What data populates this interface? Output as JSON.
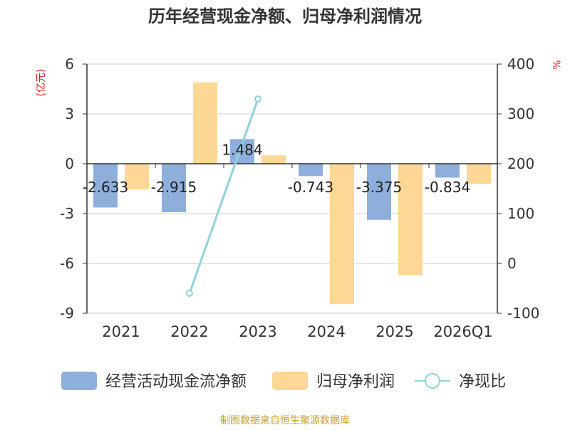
{
  "chart_data": {
    "type": "bar",
    "title": "历年经营现金净额、归母净利润情况",
    "left_axis": {
      "unit": "(亿元)",
      "ticks": [
        6,
        3,
        0,
        -3,
        -6,
        -9
      ],
      "range": [
        -9,
        6
      ]
    },
    "right_axis": {
      "unit": "%",
      "ticks": [
        400,
        300,
        200,
        100,
        0,
        -100
      ],
      "range": [
        -100,
        400
      ]
    },
    "categories": [
      "2021",
      "2022",
      "2023",
      "2024",
      "2025",
      "2026Q1"
    ],
    "series": [
      {
        "name": "经营活动现金流净额",
        "type": "bar",
        "axis": "left",
        "color": "#8eaedb",
        "values": [
          -2.633,
          -2.915,
          1.484,
          -0.743,
          -3.375,
          -0.834
        ],
        "labels": [
          "-2.633",
          "-2.915",
          "1.484",
          "-0.743",
          "-3.375",
          "-0.834"
        ]
      },
      {
        "name": "归母净利润",
        "type": "bar",
        "axis": "left",
        "color": "#fdd795",
        "values": [
          -1.55,
          4.9,
          0.5,
          -8.45,
          -6.7,
          -1.2
        ]
      },
      {
        "name": "净现比",
        "type": "line",
        "axis": "right",
        "color": "#8fd3dc",
        "values": [
          null,
          -60,
          330,
          null,
          null,
          null
        ]
      }
    ],
    "grid": true,
    "legend_position": "bottom"
  },
  "source_note": "制图数据来自恒生聚源数据库"
}
